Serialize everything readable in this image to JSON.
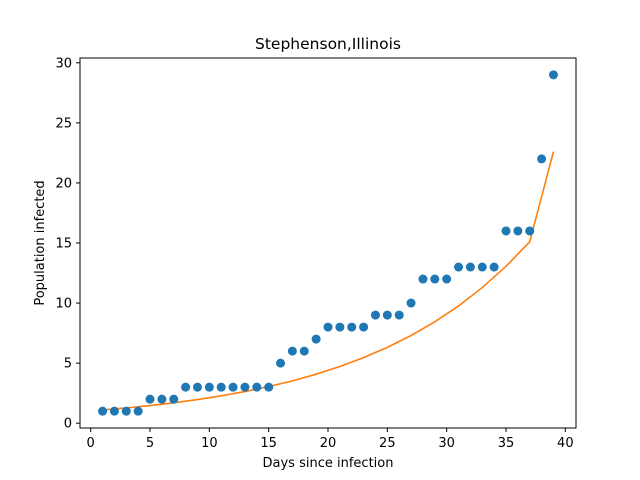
{
  "chart_data": {
    "type": "scatter",
    "title": "Stephenson,Illinois",
    "xlabel": "Days since infection",
    "ylabel": "Population infected",
    "xlim": [
      -0.9,
      40.9
    ],
    "ylim": [
      -0.4,
      30.4
    ],
    "xticks": [
      0,
      5,
      10,
      15,
      20,
      25,
      30,
      35,
      40
    ],
    "yticks": [
      0,
      5,
      10,
      15,
      20,
      25,
      30
    ],
    "grid": false,
    "series": [
      {
        "type": "scatter",
        "color": "#1f77b4",
        "x": [
          1,
          2,
          3,
          4,
          5,
          6,
          7,
          8,
          9,
          10,
          11,
          12,
          13,
          14,
          15,
          16,
          17,
          18,
          19,
          20,
          21,
          22,
          23,
          24,
          25,
          26,
          27,
          28,
          29,
          30,
          31,
          32,
          33,
          34,
          35,
          36,
          37,
          38,
          39
        ],
        "y": [
          1,
          1,
          1,
          1,
          2,
          2,
          2,
          3,
          3,
          3,
          3,
          3,
          3,
          3,
          3,
          5,
          6,
          6,
          7,
          8,
          8,
          8,
          8,
          9,
          9,
          9,
          10,
          12,
          12,
          12,
          13,
          13,
          13,
          13,
          16,
          16,
          16,
          22,
          29
        ]
      },
      {
        "type": "line",
        "color": "#ff7f0e",
        "x": [
          1,
          3,
          5,
          7,
          9,
          11,
          13,
          15,
          17,
          19,
          21,
          23,
          25,
          27,
          29,
          31,
          33,
          35,
          37,
          39
        ],
        "y": [
          1.1,
          1.27,
          1.47,
          1.7,
          1.97,
          2.28,
          2.63,
          3.05,
          3.52,
          4.08,
          4.72,
          5.46,
          6.31,
          7.3,
          8.44,
          9.76,
          11.29,
          13.06,
          15.1,
          22.6
        ]
      }
    ]
  }
}
